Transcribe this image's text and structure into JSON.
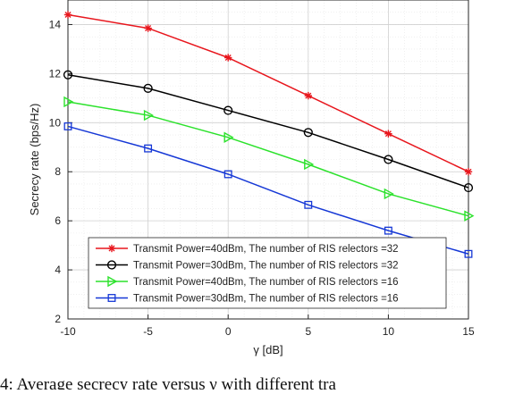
{
  "chart_data": {
    "type": "line",
    "x": [
      -10,
      -5,
      0,
      5,
      10,
      15
    ],
    "x_ticks": [
      -10,
      -5,
      0,
      5,
      10,
      15
    ],
    "y_ticks": [
      2,
      4,
      6,
      8,
      10,
      12,
      14
    ],
    "xlim": [
      -10,
      15
    ],
    "ylim": [
      2,
      15
    ],
    "xlabel": "γ [dB]",
    "ylabel": "Secrecy rate (bps/Hz)",
    "grid": true,
    "minor_grid": true,
    "legend_position": "bottom-left",
    "series": [
      {
        "name": "Transmit Power=40dBm, The number of RIS relectors =32",
        "color": "#e8161d",
        "marker": "star",
        "values": [
          14.4,
          13.85,
          12.65,
          11.1,
          9.55,
          8.0
        ]
      },
      {
        "name": "Transmit Power=30dBm, The number of RIS relectors =32",
        "color": "#000000",
        "marker": "circle",
        "values": [
          11.95,
          11.4,
          10.5,
          9.6,
          8.5,
          7.35
        ]
      },
      {
        "name": "Transmit Power=40dBm, The number of RIS relectors =16",
        "color": "#2ce22c",
        "marker": "triangle-right",
        "values": [
          10.85,
          10.3,
          9.4,
          8.3,
          7.1,
          6.2
        ]
      },
      {
        "name": "Transmit Power=30dBm, The number of RIS relectors =16",
        "color": "#1638d6",
        "marker": "square",
        "values": [
          9.85,
          8.95,
          7.9,
          6.65,
          5.6,
          4.65
        ]
      }
    ]
  },
  "caption": "4: Average secrecy rate versus γ with different tra"
}
